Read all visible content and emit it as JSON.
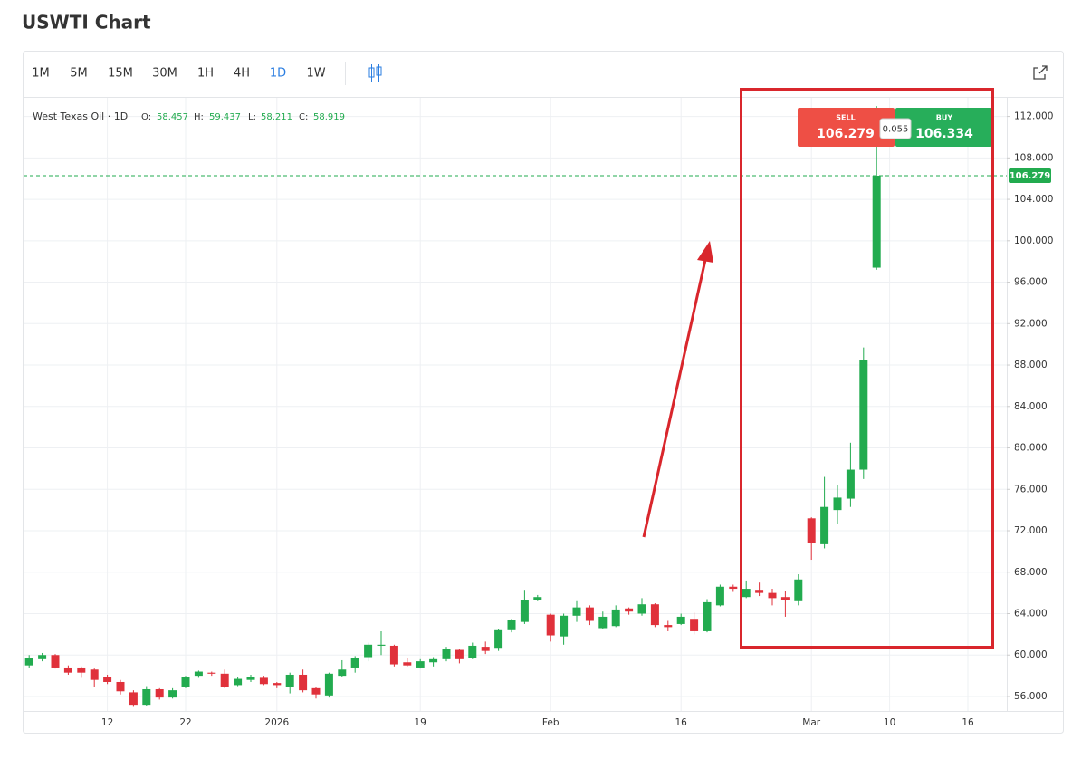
{
  "title": "USWTI Chart",
  "toolbar": {
    "intervals": [
      "1M",
      "5M",
      "15M",
      "30M",
      "1H",
      "4H",
      "1D",
      "1W"
    ],
    "active": "1D"
  },
  "ohlc_legend": {
    "name": "West Texas Oil · 1D",
    "items": [
      {
        "label": "O:",
        "value": 58.457
      },
      {
        "label": "H:",
        "value": 59.437
      },
      {
        "label": "L:",
        "value": 58.211
      },
      {
        "label": "C:",
        "value": 58.919
      }
    ]
  },
  "trade": {
    "sell_label": "SELL",
    "sell": 106.279,
    "buy_label": "BUY",
    "buy": 106.334,
    "spread": 0.055
  },
  "chart_data": {
    "type": "candlestick",
    "up_color": "#22ab4f",
    "down_color": "#e0313b",
    "grid": true,
    "price_line": 106.279,
    "categories": [
      null,
      null,
      null,
      null,
      null,
      null,
      "12",
      null,
      null,
      null,
      null,
      null,
      "22",
      null,
      null,
      null,
      null,
      null,
      null,
      "2026",
      null,
      null,
      null,
      null,
      null,
      null,
      null,
      null,
      null,
      null,
      "19",
      null,
      null,
      null,
      null,
      null,
      null,
      null,
      null,
      null,
      "Feb",
      null,
      null,
      null,
      null,
      null,
      null,
      null,
      null,
      null,
      "16",
      null,
      null,
      null,
      null,
      null,
      null,
      null,
      null,
      null,
      "Mar",
      null,
      null,
      null,
      null,
      null,
      "10",
      null,
      null,
      null,
      null,
      null,
      "16",
      null,
      null
    ],
    "open": [
      59.0,
      59.6,
      60.0,
      58.8,
      58.8,
      58.6,
      57.9,
      57.4,
      56.4,
      55.2,
      56.7,
      55.9,
      56.9,
      58.0,
      58.3,
      58.2,
      57.1,
      57.6,
      57.8,
      57.3,
      56.9,
      58.1,
      56.8,
      56.1,
      58.0,
      58.8,
      59.8,
      60.9,
      60.9,
      59.3,
      58.8,
      59.3,
      59.6,
      60.5,
      59.7,
      60.8,
      60.7,
      62.4,
      63.2,
      65.3,
      63.9,
      61.8,
      63.8,
      64.6,
      62.6,
      62.8,
      64.5,
      64.0,
      64.9,
      62.9,
      63.0,
      63.5,
      62.3,
      64.8,
      66.6,
      65.6,
      66.3,
      66.0,
      65.6,
      65.2,
      73.2,
      70.7,
      74.0,
      75.1,
      77.9,
      97.4,
      null,
      null,
      null,
      null,
      null,
      null,
      null,
      null,
      null
    ],
    "high": [
      60.0,
      60.2,
      60.1,
      59.0,
      58.9,
      58.7,
      58.1,
      57.6,
      56.6,
      57.0,
      56.8,
      56.8,
      58.0,
      58.5,
      58.4,
      58.6,
      57.9,
      58.1,
      58.0,
      57.4,
      58.3,
      58.6,
      56.9,
      58.3,
      59.5,
      59.9,
      61.2,
      62.3,
      61.0,
      59.7,
      59.6,
      59.8,
      60.8,
      60.6,
      61.2,
      61.3,
      62.5,
      63.5,
      66.3,
      65.8,
      64.0,
      64.0,
      65.2,
      64.8,
      64.2,
      64.8,
      64.6,
      65.5,
      65.0,
      63.3,
      64.0,
      64.1,
      65.4,
      66.8,
      66.8,
      67.2,
      67.0,
      66.4,
      66.2,
      67.8,
      73.3,
      77.2,
      76.4,
      80.5,
      89.7,
      113.0,
      null,
      null,
      null,
      null,
      null,
      null,
      null,
      null,
      null
    ],
    "low": [
      58.8,
      59.4,
      58.7,
      58.1,
      57.8,
      56.9,
      57.2,
      56.2,
      55.0,
      55.1,
      55.7,
      55.8,
      56.8,
      57.8,
      58.0,
      56.8,
      57.0,
      57.4,
      57.1,
      56.8,
      56.3,
      56.4,
      55.8,
      55.9,
      57.9,
      58.3,
      59.4,
      60.0,
      58.9,
      58.9,
      58.7,
      58.9,
      59.4,
      59.2,
      59.6,
      60.1,
      60.4,
      62.2,
      63.0,
      65.2,
      61.3,
      61.0,
      63.2,
      62.9,
      62.5,
      62.7,
      63.9,
      63.8,
      62.7,
      62.3,
      62.9,
      62.0,
      62.2,
      64.7,
      66.1,
      65.5,
      65.7,
      64.8,
      63.7,
      64.8,
      69.2,
      70.3,
      72.7,
      74.3,
      77.0,
      97.2,
      null,
      null,
      null,
      null,
      null,
      null,
      null,
      null,
      null
    ],
    "close": [
      59.7,
      60.0,
      58.8,
      58.3,
      58.3,
      57.6,
      57.4,
      56.5,
      55.2,
      56.7,
      55.9,
      56.6,
      57.9,
      58.4,
      58.2,
      56.9,
      57.7,
      57.9,
      57.2,
      57.1,
      58.1,
      56.6,
      56.2,
      58.2,
      58.6,
      59.7,
      61.0,
      61.0,
      59.1,
      59.0,
      59.4,
      59.6,
      60.6,
      59.6,
      60.9,
      60.4,
      62.4,
      63.4,
      65.3,
      65.6,
      61.9,
      63.8,
      64.6,
      63.3,
      63.7,
      64.4,
      64.2,
      64.9,
      62.9,
      62.7,
      63.7,
      62.3,
      65.1,
      66.6,
      66.4,
      66.4,
      66.0,
      65.5,
      65.3,
      67.3,
      70.8,
      74.3,
      75.2,
      77.9,
      88.5,
      106.279,
      null,
      null,
      null,
      null,
      null,
      null,
      null,
      null,
      null
    ],
    "ylim": [
      54.6,
      113.8
    ],
    "yticks": [
      {
        "value": 56,
        "label": "56.000"
      },
      {
        "value": 60,
        "label": "60.000"
      },
      {
        "value": 64,
        "label": "64.000"
      },
      {
        "value": 68,
        "label": "68.000"
      },
      {
        "value": 72,
        "label": "72.000"
      },
      {
        "value": 76,
        "label": "76.000"
      },
      {
        "value": 80,
        "label": "80.000"
      },
      {
        "value": 84,
        "label": "84.000"
      },
      {
        "value": 88,
        "label": "88.000"
      },
      {
        "value": 92,
        "label": "92.000"
      },
      {
        "value": 96,
        "label": "96.000"
      },
      {
        "value": 100,
        "label": "100.000"
      },
      {
        "value": 104,
        "label": "104.000"
      },
      {
        "value": 108,
        "label": "108.000"
      },
      {
        "value": 112,
        "label": "112.000"
      }
    ]
  }
}
